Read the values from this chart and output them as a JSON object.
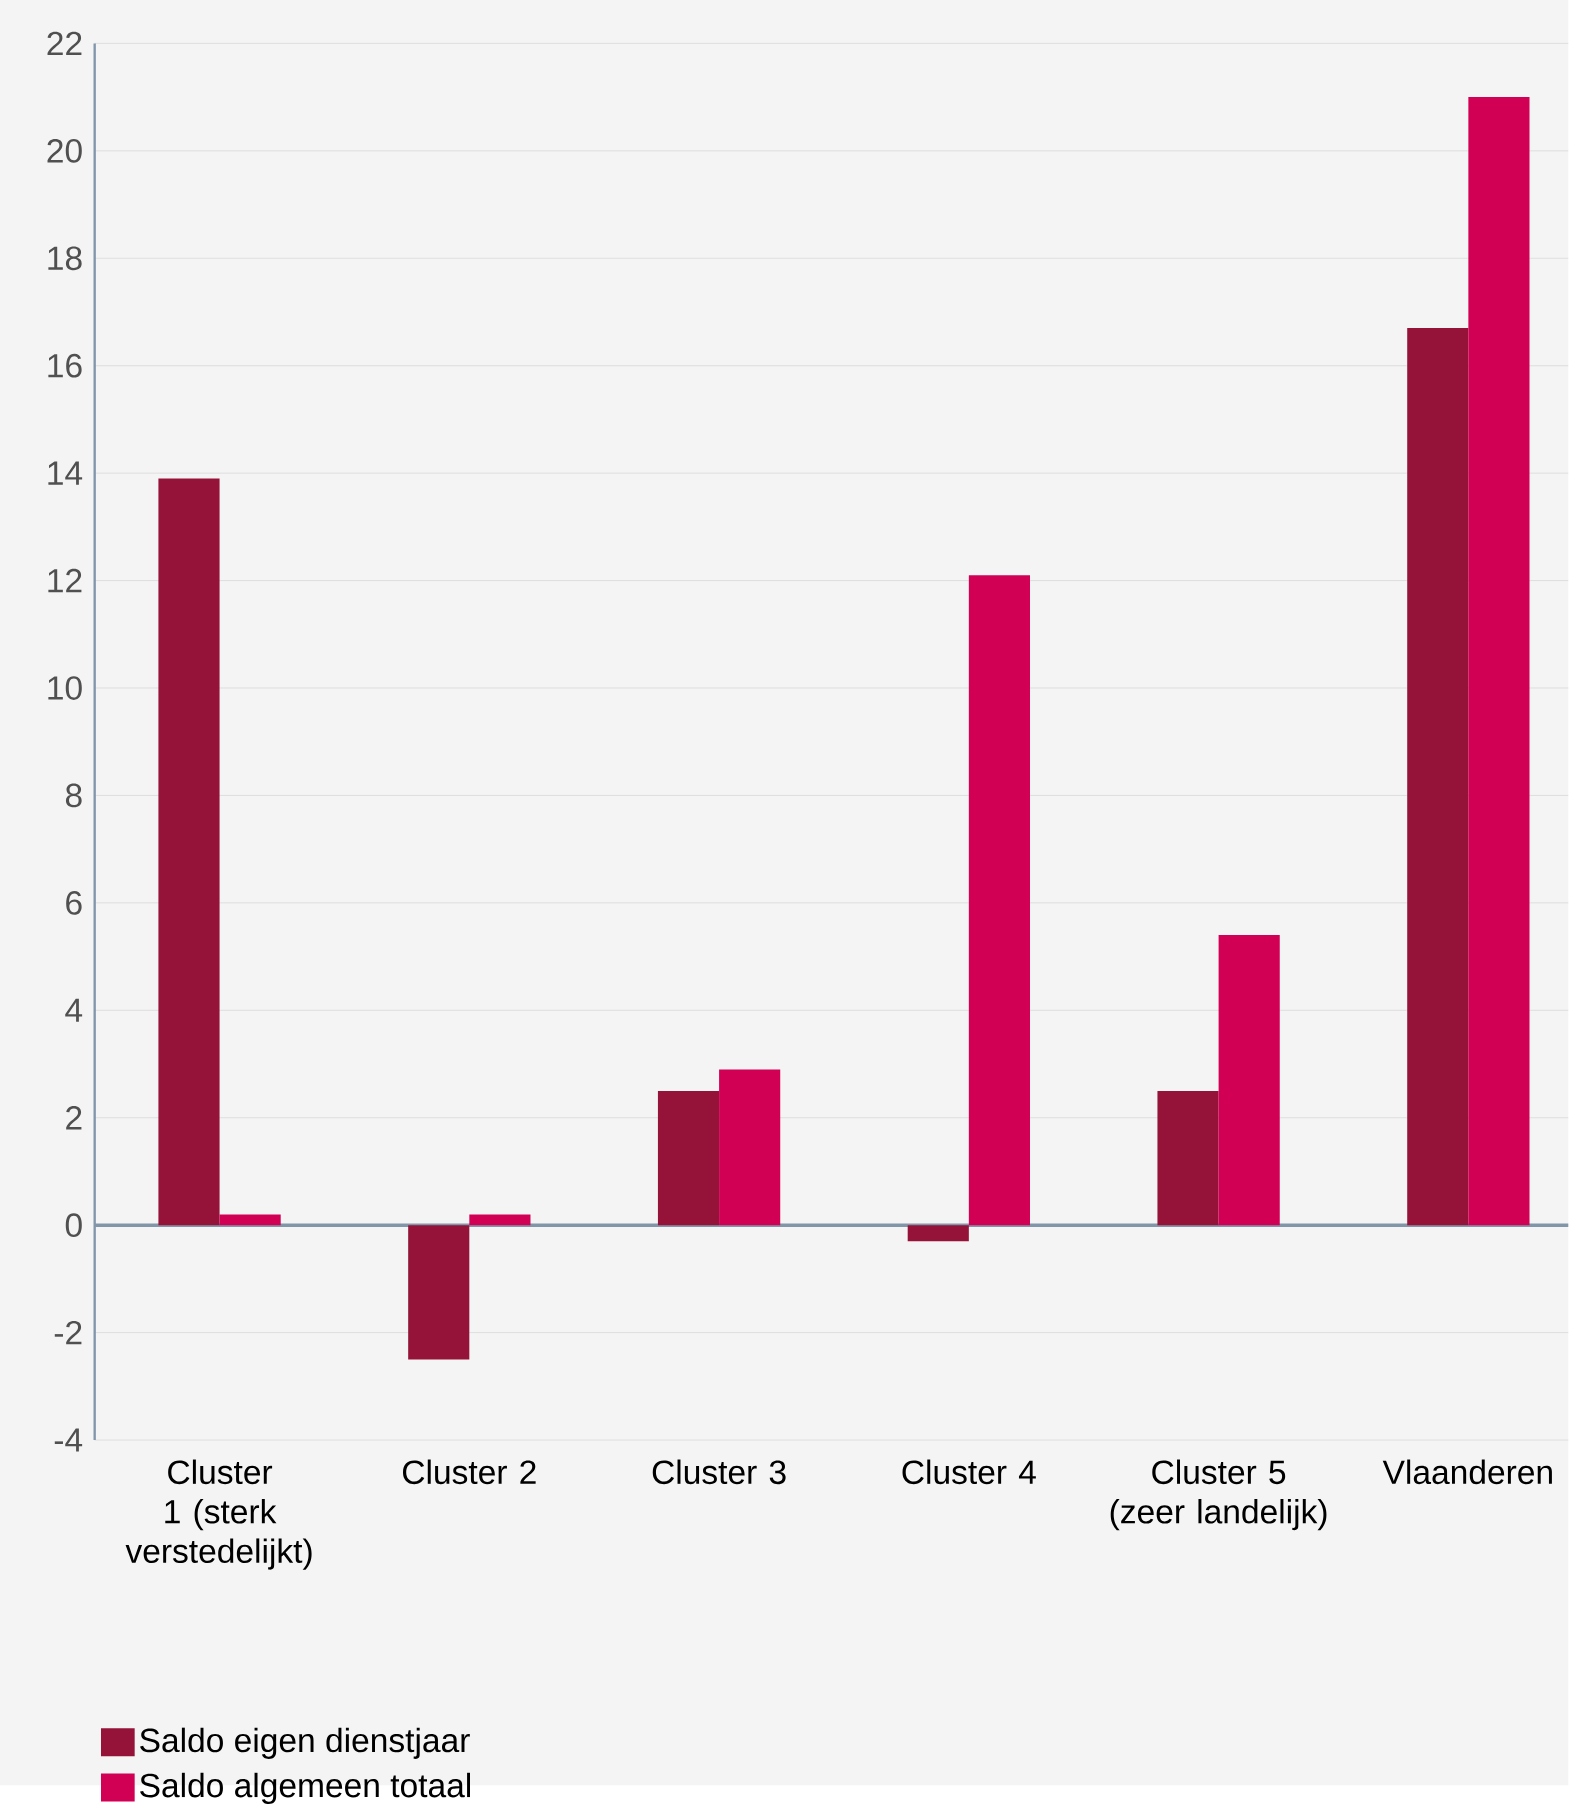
{
  "chart_data": {
    "type": "bar",
    "categories": [
      "Cluster 1 (sterk verstedelijkt)",
      "Cluster 2",
      "Cluster 3",
      "Cluster 4",
      "Cluster 5 (zeer landelijk)",
      "Vlaanderen"
    ],
    "series": [
      {
        "name": "Saldo eigen dienstjaar",
        "color": "#951339",
        "values": [
          13.9,
          -2.5,
          2.5,
          -0.3,
          2.5,
          16.7
        ]
      },
      {
        "name": "Saldo algemeen totaal",
        "color": "#d20055",
        "values": [
          0.2,
          0.2,
          2.9,
          12.1,
          5.4,
          21.0
        ]
      }
    ],
    "ylim": [
      -4,
      22
    ],
    "yticks": [
      -4,
      -2,
      0,
      2,
      4,
      6,
      8,
      10,
      12,
      14,
      16,
      18,
      20,
      22
    ],
    "grid": "y",
    "legend": "bottom left"
  }
}
